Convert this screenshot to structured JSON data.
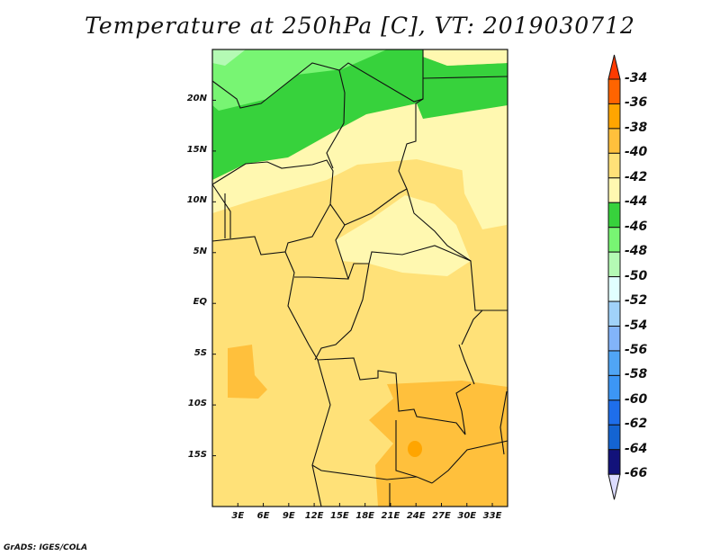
{
  "title": "Temperature at 250hPa [C], VT: 2019030712",
  "credit": "GrADS: IGES/COLA",
  "map": {
    "lat_labels": [
      "20N",
      "15N",
      "10N",
      "5N",
      "EQ",
      "5S",
      "10S",
      "15S"
    ],
    "lat_values": [
      20,
      15,
      10,
      5,
      0,
      -5,
      -10,
      -15
    ],
    "lon_labels": [
      "3E",
      "6E",
      "9E",
      "12E",
      "15E",
      "18E",
      "21E",
      "24E",
      "27E",
      "30E",
      "33E"
    ],
    "lon_values": [
      3,
      6,
      9,
      12,
      15,
      18,
      21,
      24,
      27,
      30,
      33
    ],
    "lon_range": [
      0,
      34.8
    ],
    "lat_range": [
      -20,
      25
    ]
  },
  "colorbar": {
    "labels": [
      "-34",
      "-36",
      "-38",
      "-40",
      "-42",
      "-44",
      "-46",
      "-48",
      "-50",
      "-52",
      "-54",
      "-56",
      "-58",
      "-60",
      "-62",
      "-64",
      "-66"
    ],
    "top_color": "#ff3a00",
    "bottom_color": "#dcdcff",
    "colors": [
      "#ff6400",
      "#ffa500",
      "#ffc03c",
      "#ffe178",
      "#fff8b0",
      "#37d23c",
      "#78f573",
      "#b4fab4",
      "#e1ffff",
      "#a0d2fa",
      "#82b4fa",
      "#50a5f5",
      "#3c96f5",
      "#1e6eeb",
      "#1464d2",
      "#12127a"
    ]
  }
}
